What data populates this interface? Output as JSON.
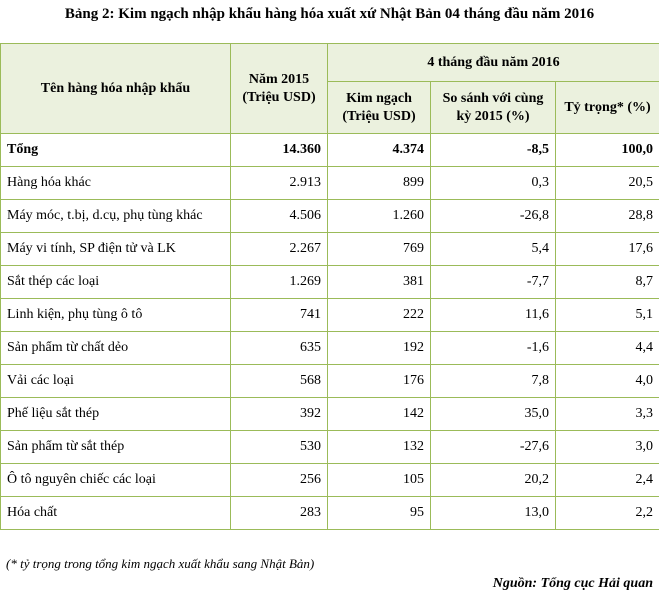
{
  "caption": "Bảng 2: Kim ngạch nhập khẩu hàng hóa xuất xứ Nhật Bản 04 tháng đầu năm 2016",
  "table": {
    "header": {
      "name_col": "Tên hàng hóa nhập khẩu",
      "year2015_col": "Năm 2015 (Triệu USD)",
      "group_col": "4 tháng đầu năm 2016",
      "value_col": "Kim ngạch (Triệu USD)",
      "compare_col": "So sánh với cùng kỳ 2015 (%)",
      "share_col": "Tỷ trọng* (%)"
    },
    "rows": [
      {
        "name": "Tổng",
        "y2015": "14.360",
        "value": "4.374",
        "compare": "-8,5",
        "share": "100,0"
      },
      {
        "name": "Hàng hóa khác",
        "y2015": "2.913",
        "value": "899",
        "compare": "0,3",
        "share": "20,5"
      },
      {
        "name": "Máy móc, t.bị, d.cụ, phụ tùng khác",
        "y2015": "4.506",
        "value": "1.260",
        "compare": "-26,8",
        "share": "28,8"
      },
      {
        "name": "Máy vi tính, SP điện tử và LK",
        "y2015": "2.267",
        "value": "769",
        "compare": "5,4",
        "share": "17,6"
      },
      {
        "name": "Sắt thép các loại",
        "y2015": "1.269",
        "value": "381",
        "compare": "-7,7",
        "share": "8,7"
      },
      {
        "name": "Linh kiện, phụ tùng ô tô",
        "y2015": "741",
        "value": "222",
        "compare": "11,6",
        "share": "5,1"
      },
      {
        "name": "Sản phẩm từ chất dẻo",
        "y2015": "635",
        "value": "192",
        "compare": "-1,6",
        "share": "4,4"
      },
      {
        "name": "Vải các loại",
        "y2015": "568",
        "value": "176",
        "compare": "7,8",
        "share": "4,0"
      },
      {
        "name": "Phế liệu sắt thép",
        "y2015": "392",
        "value": "142",
        "compare": "35,0",
        "share": "3,3"
      },
      {
        "name": "Sản phẩm từ sắt thép",
        "y2015": "530",
        "value": "132",
        "compare": "-27,6",
        "share": "3,0"
      },
      {
        "name": "Ô tô nguyên chiếc các loại",
        "y2015": "256",
        "value": "105",
        "compare": "20,2",
        "share": "2,4"
      },
      {
        "name": "Hóa chất",
        "y2015": "283",
        "value": "95",
        "compare": "13,0",
        "share": "2,2"
      }
    ]
  },
  "footnote": "(* tỷ trọng trong tổng kim ngạch xuất khẩu sang Nhật Bản)",
  "source": "Nguồn: Tổng cục Hải quan",
  "colors": {
    "header_bg": "#ebf1de",
    "border": "#9bbb59"
  }
}
